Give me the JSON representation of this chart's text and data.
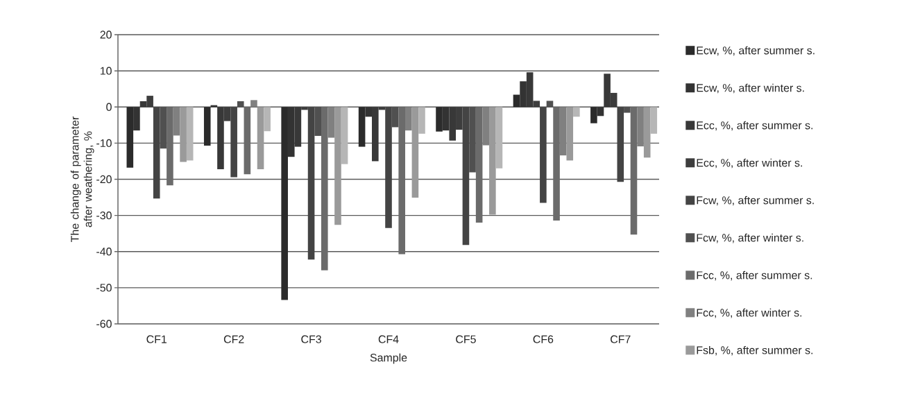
{
  "chart_data": {
    "type": "bar",
    "xlabel": "Sample",
    "ylabel": "The change of parameter after weathering, %",
    "categories": [
      "CF1",
      "CF2",
      "CF3",
      "CF4",
      "CF5",
      "CF6",
      "CF7"
    ],
    "series": [
      {
        "name": "Ecw, %, after summer s.",
        "color": "#2b2b2b",
        "values": [
          -16.8,
          -10.7,
          -53.4,
          -11.0,
          -6.8,
          3.4,
          -4.5
        ]
      },
      {
        "name": "Ecw, %, after winter s.",
        "color": "#333333",
        "values": [
          -6.5,
          0.5,
          -13.8,
          -2.7,
          -6.5,
          7.1,
          -2.5
        ]
      },
      {
        "name": "Ecc, %, after summer s.",
        "color": "#383838",
        "values": [
          1.6,
          -17.2,
          -11.0,
          -15.0,
          -9.3,
          9.6,
          9.2
        ]
      },
      {
        "name": "Ecc, %, after winter s.",
        "color": "#3d3d3d",
        "values": [
          3.1,
          -3.9,
          -0.8,
          -0.8,
          -6.3,
          1.7,
          3.9
        ]
      },
      {
        "name": "Fcw, %, after summer s.",
        "color": "#444444",
        "values": [
          -25.3,
          -19.4,
          -42.2,
          -33.5,
          -38.2,
          -26.5,
          -20.7
        ]
      },
      {
        "name": "Fcw, %, after winter s.",
        "color": "#505050",
        "values": [
          -11.5,
          1.6,
          -8.0,
          -5.6,
          -18.1,
          1.7,
          -1.6
        ]
      },
      {
        "name": "Fcc, %, after summer s.",
        "color": "#6b6b6b",
        "values": [
          -21.7,
          -18.6,
          -45.2,
          -40.7,
          -32.0,
          -31.4,
          -35.3
        ]
      },
      {
        "name": "Fcc, %, after winter s.",
        "color": "#808080",
        "values": [
          -7.9,
          1.9,
          -8.5,
          -6.5,
          -10.6,
          -13.4,
          -10.9
        ]
      },
      {
        "name": "Fsb, %, after summer s.",
        "color": "#9a9a9a",
        "values": [
          -15.2,
          -17.2,
          -32.6,
          -25.1,
          -29.8,
          -14.8,
          -14.0
        ]
      },
      {
        "color": "#b6b6b6",
        "values": [
          -14.8,
          -6.7,
          -15.8,
          -7.4,
          -17.0,
          -2.7,
          -7.4
        ]
      }
    ],
    "ylim": [
      -60,
      20
    ],
    "yticks": [
      -60,
      -50,
      -40,
      -30,
      -20,
      -10,
      0,
      10,
      20
    ],
    "grid": "y",
    "legend": "right"
  }
}
